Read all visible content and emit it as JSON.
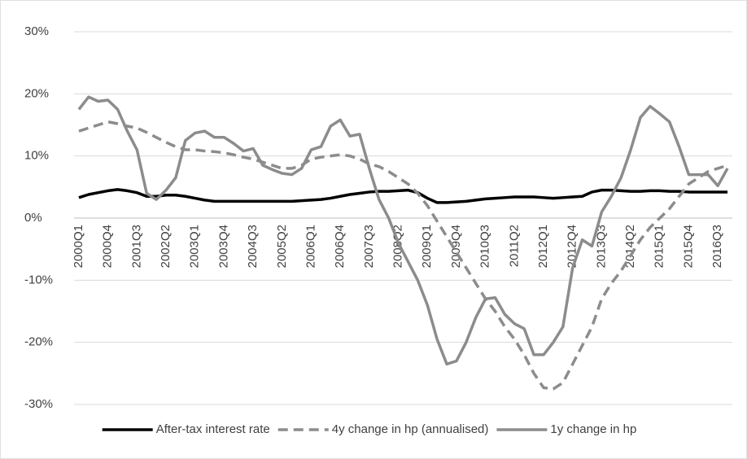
{
  "chart_data": {
    "type": "line",
    "categories": [
      "2000Q1",
      null,
      null,
      "2000Q4",
      null,
      null,
      "2001Q3",
      null,
      null,
      "2002Q2",
      null,
      null,
      "2003Q1",
      null,
      null,
      "2003Q4",
      null,
      null,
      "2004Q3",
      null,
      null,
      "2005Q2",
      null,
      null,
      "2006Q1",
      null,
      null,
      "2006Q4",
      null,
      null,
      "2007Q3",
      null,
      null,
      "2008Q2",
      null,
      null,
      "2009Q1",
      null,
      null,
      "2009Q4",
      null,
      null,
      "2010Q3",
      null,
      null,
      "2011Q2",
      null,
      null,
      "2012Q1",
      null,
      null,
      "2012Q4",
      null,
      null,
      "2013Q3",
      null,
      null,
      "2014Q2",
      null,
      null,
      "2015Q1",
      null,
      null,
      "2015Q4",
      null,
      null,
      "2016Q3",
      null
    ],
    "series": [
      {
        "name": "After-tax interest rate",
        "color": "#000000",
        "dashed": false,
        "values": [
          3.3,
          3.8,
          4.1,
          4.4,
          4.6,
          4.4,
          4.1,
          3.5,
          3.5,
          3.7,
          3.7,
          3.5,
          3.2,
          2.9,
          2.7,
          2.7,
          2.7,
          2.7,
          2.7,
          2.7,
          2.7,
          2.7,
          2.7,
          2.8,
          2.9,
          3.0,
          3.2,
          3.5,
          3.8,
          4.0,
          4.2,
          4.3,
          4.3,
          4.4,
          4.5,
          4.1,
          3.2,
          2.5,
          2.5,
          2.6,
          2.7,
          2.9,
          3.1,
          3.2,
          3.3,
          3.4,
          3.4,
          3.4,
          3.3,
          3.2,
          3.3,
          3.4,
          3.5,
          4.2,
          4.5,
          4.5,
          4.4,
          4.3,
          4.3,
          4.4,
          4.4,
          4.3,
          4.3,
          4.2,
          4.2,
          4.2,
          4.2,
          4.2
        ]
      },
      {
        "name": "4y change in hp (annualised)",
        "color": "#8c8c8c",
        "dashed": true,
        "values": [
          14,
          14.5,
          15,
          15.5,
          15.2,
          14.8,
          14.5,
          13.8,
          13,
          12.2,
          11.5,
          11,
          11,
          10.8,
          10.7,
          10.5,
          10.2,
          9.8,
          9.5,
          9,
          8.5,
          8,
          8,
          8.5,
          9.5,
          9.8,
          10,
          10.2,
          10,
          9.5,
          8.7,
          8.3,
          7.5,
          6.5,
          5.5,
          4,
          2,
          -0.5,
          -3,
          -5.5,
          -8,
          -10.5,
          -13,
          -15,
          -17.5,
          -19.5,
          -22,
          -25,
          -27.3,
          -27.5,
          -26.5,
          -23.5,
          -20.5,
          -17.5,
          -13,
          -10.5,
          -8.5,
          -6,
          -3.5,
          -1.5,
          0,
          1.5,
          3.5,
          5.5,
          6.5,
          7.5,
          8,
          8.5
        ]
      },
      {
        "name": "1y change in hp",
        "color": "#8c8c8c",
        "dashed": false,
        "values": [
          17.5,
          19.5,
          18.8,
          19,
          17.5,
          14,
          11,
          4,
          3,
          4.5,
          6.5,
          12.5,
          13.7,
          14,
          13,
          13,
          12,
          10.8,
          11.2,
          8.5,
          7.8,
          7.2,
          7,
          8,
          11,
          11.5,
          14.8,
          15.8,
          13.2,
          13.5,
          8,
          3,
          0,
          -4,
          -7,
          -10,
          -14,
          -19.5,
          -23.5,
          -23,
          -20,
          -16,
          -13,
          -12.8,
          -15.5,
          -17,
          -17.8,
          -22,
          -22,
          -20,
          -17.5,
          -8,
          -3.5,
          -4.5,
          1,
          3.5,
          6.5,
          11,
          16.2,
          18,
          16.8,
          15.5,
          11.5,
          7,
          7,
          7,
          5.2,
          8
        ]
      }
    ],
    "ylim": [
      -30,
      30
    ],
    "yticks": [
      {
        "value": -30,
        "label": "-30%"
      },
      {
        "value": -20,
        "label": "-20%"
      },
      {
        "value": -10,
        "label": "-10%"
      },
      {
        "value": 0,
        "label": "0%"
      },
      {
        "value": 10,
        "label": "10%"
      },
      {
        "value": 20,
        "label": "20%"
      },
      {
        "value": 30,
        "label": "30%"
      }
    ],
    "grid": true,
    "legend": "bottom"
  }
}
